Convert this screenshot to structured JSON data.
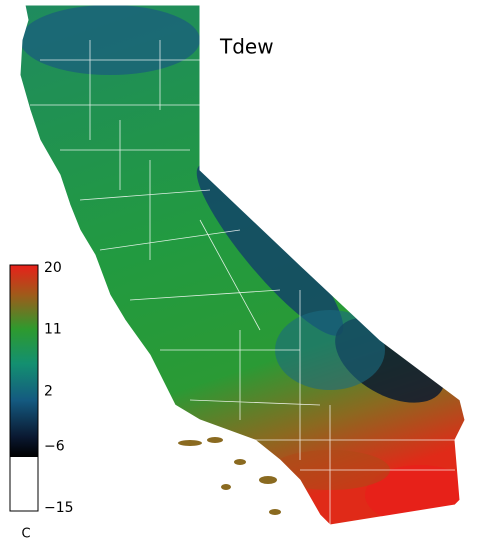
{
  "title": "Tdew",
  "colorbar": {
    "unit": "C",
    "range": [
      -15,
      20
    ],
    "ticks": [
      20,
      11,
      2,
      {
        "value": -6,
        "label": "−6"
      },
      {
        "value": -15,
        "label": "−15"
      }
    ]
  }
}
